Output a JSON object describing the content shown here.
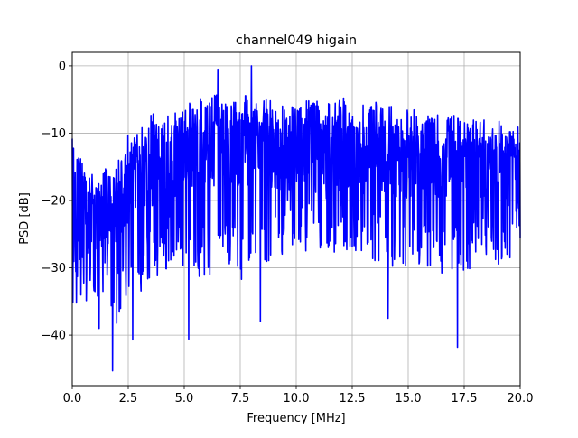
{
  "chart_data": {
    "type": "line",
    "title": "channel049 higain",
    "xlabel": "Frequency [MHz]",
    "ylabel": "PSD [dB]",
    "xlim": [
      0,
      20
    ],
    "ylim": [
      -47.5,
      2
    ],
    "grid": true,
    "x_ticks": [
      0,
      2.5,
      5,
      7.5,
      10,
      12.5,
      15,
      17.5,
      20
    ],
    "x_tick_labels": [
      "0.0",
      "2.5",
      "5.0",
      "7.5",
      "10.0",
      "12.5",
      "15.0",
      "17.5",
      "20.0"
    ],
    "y_ticks": [
      0,
      -10,
      -20,
      -30,
      -40
    ],
    "y_tick_labels": [
      "0",
      "−10",
      "−20",
      "−30",
      "−40"
    ],
    "colors": {
      "series": "#0000ff",
      "grid": "#b0b0b0"
    },
    "series": [
      {
        "x": [
          0.0,
          0.5,
          1.0,
          1.5,
          2.0,
          2.5,
          3.0,
          3.5,
          4.0,
          4.5,
          5.0,
          5.5,
          6.0,
          6.5,
          7.0,
          7.5,
          8.0,
          8.5,
          9.0,
          9.5,
          10.0,
          10.5,
          11.0,
          11.5,
          12.0,
          12.5,
          13.0,
          13.5,
          14.0,
          14.5,
          15.0,
          15.5,
          16.0,
          16.5,
          17.0,
          17.5,
          18.0,
          18.5,
          19.0,
          19.5,
          20.0
        ],
        "upper": [
          -10,
          -15,
          -16,
          -15,
          -14,
          -10,
          -9,
          -7,
          -7,
          -7,
          -6,
          -5,
          -5,
          -4,
          -5,
          -4,
          -4,
          -5,
          -5,
          -6,
          -6,
          -5,
          -5,
          -5,
          -5,
          -4,
          -5,
          -5,
          -6,
          -6,
          -6,
          -5,
          -7,
          -7,
          -7,
          -8,
          -8,
          -8,
          -8,
          -9,
          -9
        ],
        "lower": [
          -37,
          -36,
          -35,
          -33,
          -39,
          -33,
          -34,
          -32,
          -31,
          -30,
          -30,
          -31,
          -32,
          -30,
          -31,
          -33,
          -32,
          -30,
          -29,
          -28,
          -28,
          -28,
          -27,
          -28,
          -28,
          -28,
          -29,
          -29,
          -30,
          -30,
          -30,
          -30,
          -30,
          -31,
          -31,
          -31,
          -31,
          -30,
          -30,
          -29,
          -28
        ],
        "mid": [
          -22,
          -24,
          -23,
          -22,
          -21,
          -19,
          -17,
          -16,
          -15,
          -15,
          -14,
          -14,
          -14,
          -13,
          -13,
          -13,
          -13,
          -13,
          -14,
          -14,
          -14,
          -14,
          -14,
          -14,
          -14,
          -14,
          -14,
          -14,
          -15,
          -15,
          -15,
          -15,
          -15,
          -15,
          -16,
          -16,
          -16,
          -16,
          -16,
          -16,
          -16
        ],
        "spikes": [
          [
            1.2,
            -39
          ],
          [
            1.8,
            -45.3
          ],
          [
            2.7,
            -40.7
          ],
          [
            5.2,
            -40.6
          ],
          [
            6.5,
            -0.5
          ],
          [
            8.0,
            0.0
          ],
          [
            8.4,
            -38
          ],
          [
            14.1,
            -37.5
          ],
          [
            17.2,
            -41.8
          ]
        ]
      }
    ]
  }
}
